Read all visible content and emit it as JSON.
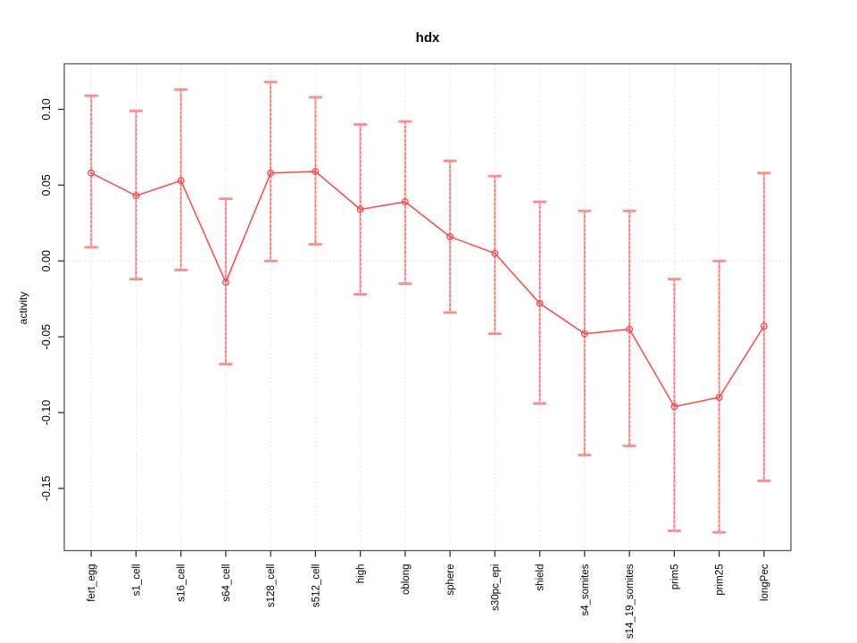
{
  "page": {
    "background": "#ffffff"
  },
  "chart_data": {
    "type": "line",
    "title": "hdx",
    "xlabel": "",
    "ylabel": "activity",
    "categories": [
      "fert_egg",
      "s1_cell",
      "s16_cell",
      "s64_cell",
      "s128_cell",
      "s512_cell",
      "high",
      "oblong",
      "sphere",
      "s30pc_epi",
      "shield",
      "s4_somites",
      "s14_19_somites",
      "prim5",
      "prim25",
      "longPec"
    ],
    "series": [
      {
        "name": "hdx activity",
        "values": [
          0.058,
          0.043,
          0.053,
          -0.014,
          0.058,
          0.059,
          0.034,
          0.039,
          0.016,
          0.005,
          -0.028,
          -0.048,
          -0.045,
          -0.096,
          -0.09,
          -0.043
        ],
        "lower": [
          0.009,
          -0.012,
          -0.006,
          -0.068,
          0.0,
          0.011,
          -0.022,
          -0.015,
          -0.034,
          -0.048,
          -0.094,
          -0.128,
          -0.122,
          -0.178,
          -0.179,
          -0.145
        ],
        "upper": [
          0.109,
          0.099,
          0.113,
          0.041,
          0.118,
          0.108,
          0.09,
          0.092,
          0.066,
          0.056,
          0.039,
          0.033,
          0.033,
          -0.012,
          0.0,
          0.058
        ]
      }
    ],
    "y_ticks": [
      0.1,
      0.05,
      0.0,
      -0.05,
      -0.1,
      -0.15
    ],
    "y_tick_labels": [
      "0.10",
      "0.05",
      "0.00",
      "-0.05",
      "-0.10",
      "-0.15"
    ],
    "ylim": [
      -0.191,
      0.13
    ],
    "xlim": [
      0.4,
      16.6
    ],
    "grid": {
      "vertical_per_category": true,
      "horizontal_at_zero": true,
      "style": "dotted"
    },
    "legend_position": "none",
    "marker": "open-circle",
    "colors": {
      "line": "#ff4646",
      "point_stroke": "#ff4646",
      "errorbar_stem": "#ffb0b0",
      "errorbar_dash": "#ff5555",
      "errorbar_cap": "#ff8c8c",
      "grid": "#d9d9d9",
      "box": "#585858",
      "tick": "#333333",
      "text": "#000000"
    }
  }
}
